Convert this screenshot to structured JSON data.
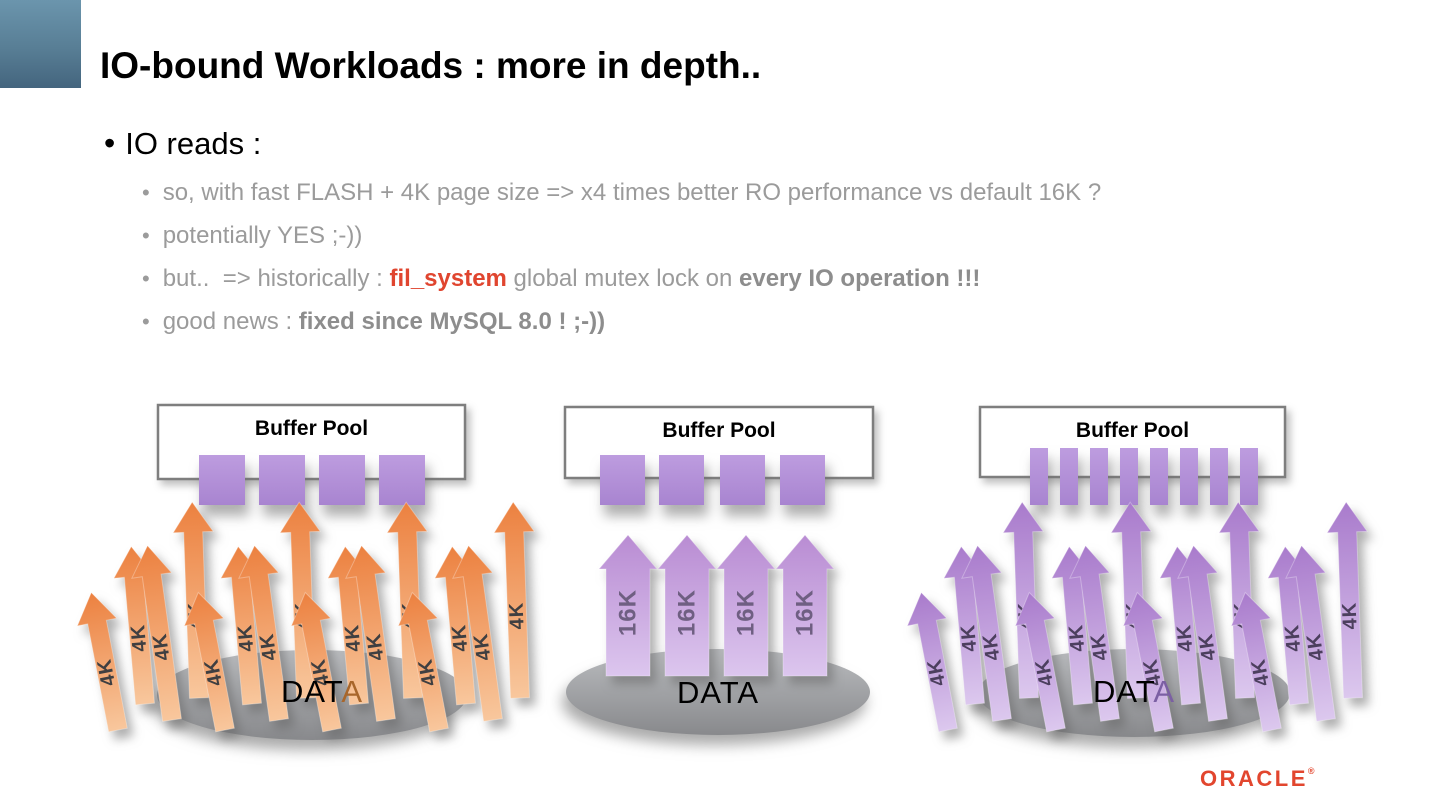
{
  "slide": {
    "title": "IO-bound Workloads : more in depth.."
  },
  "bullets": {
    "main": "IO reads :",
    "items": [
      {
        "segments": [
          {
            "text": "so, with fast FLASH + 4K page size => x4 times better RO performance vs default 16K ?",
            "style": "normal"
          }
        ]
      },
      {
        "segments": [
          {
            "text": "potentially YES ;-))",
            "style": "normal"
          }
        ]
      },
      {
        "segments": [
          {
            "text": "but..  => historically : ",
            "style": "normal"
          },
          {
            "text": "fil_system",
            "style": "red-bold"
          },
          {
            "text": " global mutex lock on ",
            "style": "normal"
          },
          {
            "text": "every IO operation !!!",
            "style": "bold"
          }
        ]
      },
      {
        "segments": [
          {
            "text": "good news : ",
            "style": "normal"
          },
          {
            "text": "fixed since MySQL 8.0 ! ;-))",
            "style": "bold"
          }
        ]
      }
    ]
  },
  "diagrams": [
    {
      "pool_label": "Buffer Pool",
      "pool_blocks": 4,
      "arrow_label": "4K",
      "arrow_count": 16,
      "arrangement": "clustered",
      "data_label": "DATA",
      "data_accent_chars": 1,
      "colors": {
        "arrow_top": "#ec8140",
        "arrow_bottom": "#f8c79d",
        "label": "#3f3f41",
        "data_accent": "#a8662b"
      }
    },
    {
      "pool_label": "Buffer Pool",
      "pool_blocks": 4,
      "arrow_label": "16K",
      "arrow_count": 4,
      "arrangement": "parallel",
      "data_label": "DATA",
      "data_accent_chars": 0,
      "colors": {
        "arrow_top": "#b98cd3",
        "arrow_bottom": "#dcc6ee",
        "label": "#6f5f82",
        "data_accent": "#000000"
      }
    },
    {
      "pool_label": "Buffer Pool",
      "pool_blocks": 8,
      "arrow_label": "4K",
      "arrow_count": 16,
      "arrangement": "clustered",
      "data_label": "DATA",
      "data_accent_chars": 1,
      "colors": {
        "arrow_top": "#a97bcc",
        "arrow_bottom": "#dcc8ee",
        "label": "#4c3f5e",
        "data_accent": "#7b5fa3"
      }
    }
  ],
  "shared_colors": {
    "pool_block_top": "#bd9cdf",
    "pool_block_bottom": "#a884d0",
    "box_border": "#7e7e7e",
    "ellipse_top": "#babcbf",
    "ellipse_bottom": "#88898c",
    "body_gray": "#9b9b9b",
    "corner_top": "#6b95ad",
    "corner_bottom": "#44657e",
    "oracle_red": "#e2462e"
  },
  "footer": {
    "logo_text": "ORACLE",
    "logo_mark": "®"
  }
}
